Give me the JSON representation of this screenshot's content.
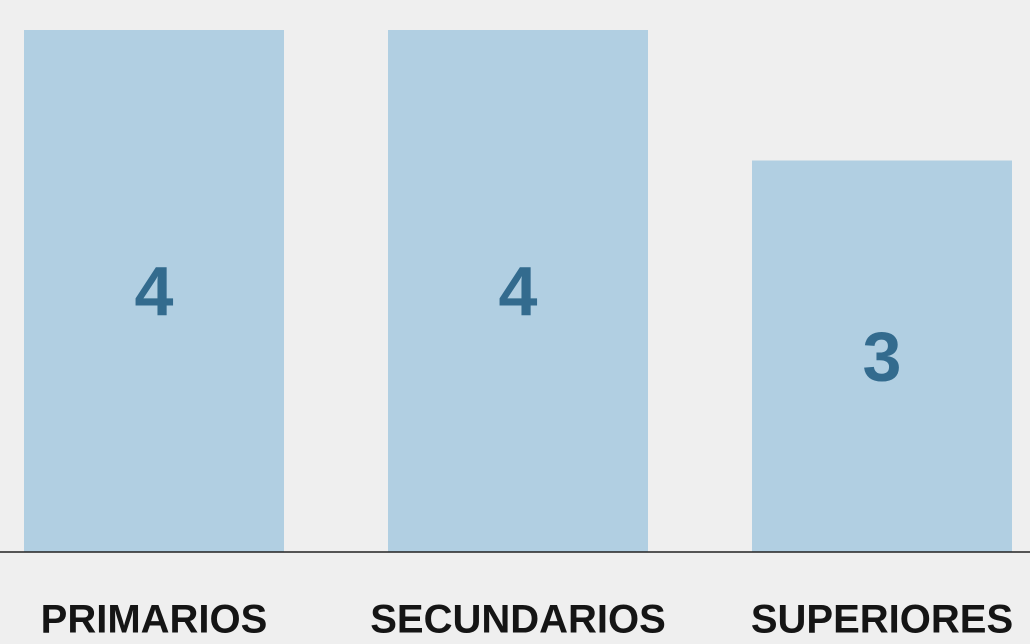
{
  "chart_data": {
    "type": "bar",
    "categories": [
      "PRIMARIOS",
      "SECUNDARIOS",
      "SUPERIORES"
    ],
    "values": [
      4,
      4,
      3
    ],
    "color": "#b1cfe2",
    "ylim": [
      0,
      4
    ],
    "grid": false
  }
}
